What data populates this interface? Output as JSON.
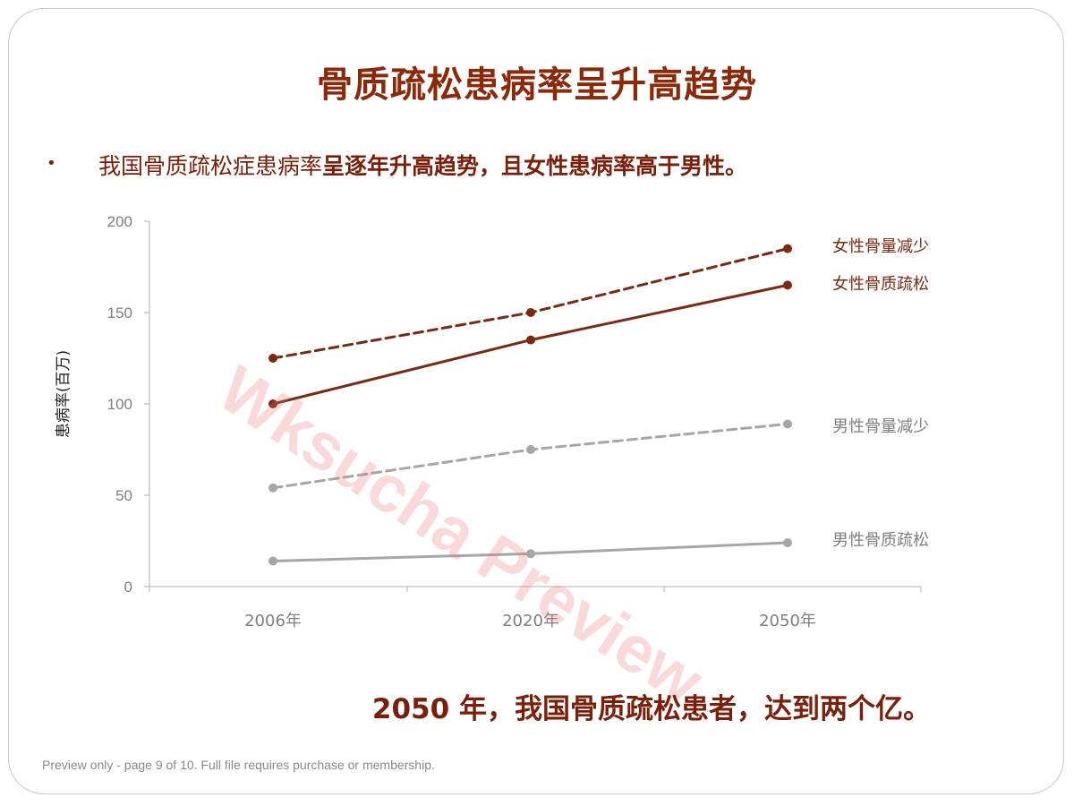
{
  "slide": {
    "title": "骨质疏松患病率呈升高趋势",
    "bullet_symbol": "•",
    "bullet_normal": "我国骨质疏松症患病率",
    "bullet_bold": "呈逐年升高趋势，且女性患病率高于男性。",
    "conclusion": "2050 年，我国骨质疏松患者，达到两个亿。",
    "watermark": "Wksucha Preview",
    "preview_note": "Preview only - page 9 of 10. Full file requires purchase or membership."
  },
  "colors": {
    "dark_brown": "#7a2a12",
    "gray": "#a6a6a6",
    "title": "#8a2a0b",
    "axis": "#b0b0b0",
    "tick_label": "#7f7f7f"
  },
  "chart_data": {
    "type": "line",
    "title": "",
    "xlabel": "",
    "ylabel": "患病率(百万)",
    "categories": [
      "2006年",
      "2020年",
      "2050年"
    ],
    "ylim": [
      0,
      200
    ],
    "yticks": [
      0,
      50,
      100,
      150,
      200
    ],
    "grid": false,
    "legend": "direct labels at right end of each line",
    "series": [
      {
        "name": "女性骨量减少",
        "values": [
          125,
          150,
          185
        ],
        "color": "#7a2a12",
        "dashed": true
      },
      {
        "name": "女性骨质疏松",
        "values": [
          100,
          135,
          165
        ],
        "color": "#7a2a12",
        "dashed": false
      },
      {
        "name": "男性骨量减少",
        "values": [
          54,
          75,
          89
        ],
        "color": "#a6a6a6",
        "dashed": true
      },
      {
        "name": "男性骨质疏松",
        "values": [
          14,
          18,
          24
        ],
        "color": "#a6a6a6",
        "dashed": false
      }
    ]
  }
}
